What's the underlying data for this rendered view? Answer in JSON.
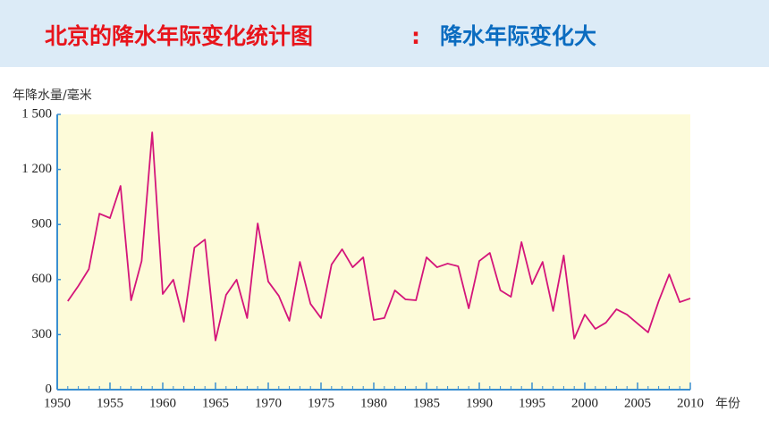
{
  "header": {
    "title": "北京的降水年际变化统计图",
    "separator": ":",
    "conclusion": "降水年际变化大"
  },
  "chart_data": {
    "type": "line",
    "y_label": "年降水量/毫米",
    "x_label": "年份",
    "x": [
      1951,
      1952,
      1953,
      1954,
      1955,
      1956,
      1957,
      1958,
      1959,
      1960,
      1961,
      1962,
      1963,
      1964,
      1965,
      1966,
      1967,
      1968,
      1969,
      1970,
      1971,
      1972,
      1973,
      1974,
      1975,
      1976,
      1977,
      1978,
      1979,
      1980,
      1981,
      1982,
      1983,
      1984,
      1985,
      1986,
      1987,
      1988,
      1989,
      1990,
      1991,
      1992,
      1993,
      1994,
      1995,
      1996,
      1997,
      1998,
      1999,
      2000,
      2001,
      2002,
      2003,
      2004,
      2005,
      2006,
      2007,
      2008,
      2009,
      2010
    ],
    "series": [
      {
        "color": "#d4157a",
        "values": [
          482,
          565,
          657,
          959,
          935,
          1110,
          487,
          701,
          1402,
          521,
          599,
          370,
          774,
          818,
          268,
          516,
          599,
          390,
          906,
          589,
          511,
          375,
          696,
          468,
          390,
          682,
          765,
          667,
          721,
          380,
          390,
          541,
          492,
          487,
          721,
          667,
          687,
          672,
          443,
          701,
          745,
          541,
          506,
          804,
          575,
          696,
          429,
          731,
          278,
          409,
          331,
          365,
          438,
          409,
          360,
          312,
          482,
          628,
          477,
          497
        ]
      }
    ],
    "xlim": [
      1950,
      2010
    ],
    "xticks": [
      1950,
      1955,
      1960,
      1965,
      1970,
      1975,
      1980,
      1985,
      1990,
      1995,
      2000,
      2005,
      2010
    ],
    "ylim": [
      0,
      1500
    ],
    "yticks": [
      0,
      300,
      600,
      900,
      {
        "value": 1200,
        "label": "1 200"
      },
      {
        "value": 1500,
        "label": "1 500"
      }
    ],
    "grid": false
  }
}
